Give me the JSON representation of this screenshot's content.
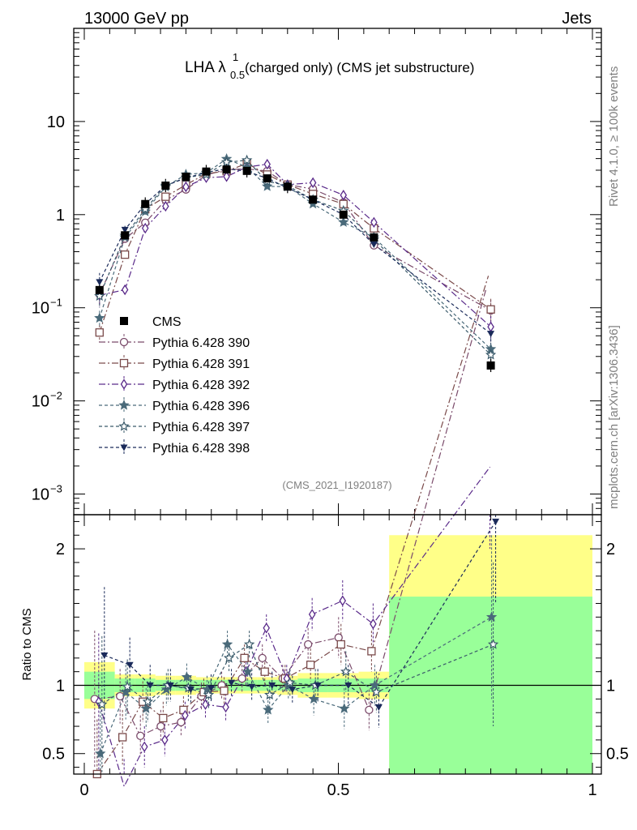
{
  "header": {
    "energy_label": "13000 GeV pp",
    "category_label": "Jets",
    "title_main": "LHA λ",
    "title_sup": "1",
    "title_sub": "0.5",
    "title_rest": "(charged only) (CMS jet substructure)",
    "analysis_id": "(CMS_2021_I1920187)",
    "side_rivet": "Rivet 4.1.0, ≥ 100k events",
    "side_mcplots": "mcplots.cern.ch [arXiv:1306.3436]"
  },
  "chart_data": {
    "type": "scatter",
    "x_axis": {
      "range": [
        -0.02,
        1.0
      ],
      "ticks": [
        0,
        0.5,
        1
      ],
      "tick_labels": [
        "0",
        "0.5",
        "1"
      ]
    },
    "main": {
      "y_scale": "log",
      "ylim": [
        0.0006,
        100
      ],
      "y_ticks": [
        10,
        1,
        0.1,
        0.01,
        0.001
      ],
      "y_tick_labels": [
        {
          "base": "10",
          "exp": ""
        },
        {
          "base": "1",
          "exp": ""
        },
        {
          "base": "10",
          "exp": "−1"
        },
        {
          "base": "10",
          "exp": "−2"
        },
        {
          "base": "10",
          "exp": "−3"
        }
      ]
    },
    "ratio": {
      "ylabel": "Ratio to CMS",
      "ylim": [
        0.35,
        2.25
      ],
      "y_ticks": [
        0.5,
        1,
        2
      ],
      "y_tick_labels": [
        "0.5",
        "1",
        "2"
      ]
    },
    "x_bins": [
      [
        0.0,
        0.06
      ],
      [
        0.06,
        0.1
      ],
      [
        0.1,
        0.14
      ],
      [
        0.14,
        0.18
      ],
      [
        0.18,
        0.22
      ],
      [
        0.22,
        0.26
      ],
      [
        0.26,
        0.3
      ],
      [
        0.3,
        0.34
      ],
      [
        0.34,
        0.38
      ],
      [
        0.38,
        0.42
      ],
      [
        0.42,
        0.48
      ],
      [
        0.48,
        0.54
      ],
      [
        0.54,
        0.6
      ],
      [
        0.6,
        1.0
      ]
    ],
    "x_points": [
      0.03,
      0.08,
      0.12,
      0.16,
      0.2,
      0.24,
      0.28,
      0.32,
      0.36,
      0.4,
      0.45,
      0.51,
      0.57,
      0.8
    ],
    "data": {
      "name": "CMS",
      "values": [
        0.155,
        0.6,
        1.3,
        2.05,
        2.55,
        2.9,
        3.05,
        2.95,
        2.45,
        2.0,
        1.45,
        1.0,
        0.57,
        0.024
      ],
      "band_green": [
        0.1,
        0.05,
        0.05,
        0.04,
        0.04,
        0.04,
        0.04,
        0.04,
        0.04,
        0.04,
        0.05,
        0.05,
        0.05,
        0.65
      ],
      "band_yellow": [
        0.17,
        0.08,
        0.08,
        0.07,
        0.07,
        0.06,
        0.06,
        0.06,
        0.06,
        0.07,
        0.09,
        0.09,
        0.1,
        1.1
      ]
    },
    "series": [
      {
        "name": "Pythia 6.428 390",
        "marker": "circle",
        "color": "#7a4a6a",
        "dash": "8,3,2,3",
        "ratio": [
          0.9,
          0.92,
          0.63,
          0.7,
          0.73,
          0.92,
          1.0,
          1.05,
          1.2,
          1.05,
          1.3,
          1.35,
          0.82,
          3.9
        ],
        "ratio_err": [
          0.5,
          0.2,
          0.15,
          0.12,
          0.1,
          0.1,
          0.1,
          0.1,
          0.1,
          0.1,
          0.12,
          0.15,
          0.15,
          0.6
        ]
      },
      {
        "name": "Pythia 6.428 391",
        "marker": "square",
        "color": "#7a4a4a",
        "dash": "8,3,2,3",
        "ratio": [
          0.35,
          0.62,
          0.88,
          0.76,
          0.82,
          0.95,
          0.96,
          1.2,
          1.1,
          1.05,
          1.15,
          1.3,
          1.25,
          4.0
        ],
        "ratio_err": [
          0.4,
          0.2,
          0.15,
          0.12,
          0.1,
          0.1,
          0.1,
          0.1,
          0.1,
          0.1,
          0.12,
          0.15,
          0.15,
          0.6
        ]
      },
      {
        "name": "Pythia 6.428 392",
        "marker": "diamond",
        "color": "#5a2a8a",
        "dash": "8,3,2,3",
        "ratio": [
          0.88,
          0.26,
          0.55,
          0.6,
          0.78,
          0.86,
          0.84,
          1.1,
          1.42,
          1.05,
          1.52,
          1.62,
          1.45,
          2.6
        ],
        "ratio_err": [
          0.5,
          0.2,
          0.15,
          0.12,
          0.1,
          0.1,
          0.1,
          0.1,
          0.1,
          0.1,
          0.12,
          0.15,
          0.15,
          0.6
        ]
      },
      {
        "name": "Pythia 6.428 396",
        "marker": "star-filled",
        "color": "#4a6a7a",
        "dash": "4,3",
        "ratio": [
          0.5,
          0.95,
          0.83,
          0.97,
          1.06,
          0.97,
          1.3,
          1.1,
          0.82,
          1.0,
          0.9,
          0.83,
          1.0,
          1.5
        ],
        "ratio_err": [
          0.4,
          0.2,
          0.15,
          0.12,
          0.1,
          0.1,
          0.1,
          0.1,
          0.1,
          0.1,
          0.12,
          0.15,
          0.15,
          0.6
        ]
      },
      {
        "name": "Pythia 6.428 397",
        "marker": "star-open",
        "color": "#3a5a6a",
        "dash": "4,3",
        "ratio": [
          0.86,
          0.99,
          0.88,
          1.0,
          0.98,
          0.93,
          1.2,
          1.3,
          0.93,
          1.02,
          1.0,
          1.1,
          0.95,
          1.3
        ],
        "ratio_err": [
          0.5,
          0.2,
          0.15,
          0.12,
          0.1,
          0.1,
          0.1,
          0.1,
          0.1,
          0.1,
          0.12,
          0.15,
          0.15,
          0.6
        ]
      },
      {
        "name": "Pythia 6.428 398",
        "marker": "triangle-down",
        "color": "#1a2a5a",
        "dash": "4,3",
        "ratio": [
          1.22,
          1.15,
          1.0,
          1.0,
          0.97,
          0.98,
          1.02,
          0.99,
          1.0,
          0.97,
          1.0,
          1.0,
          0.84,
          2.2
        ],
        "ratio_err": [
          0.5,
          0.2,
          0.15,
          0.12,
          0.1,
          0.1,
          0.1,
          0.1,
          0.1,
          0.1,
          0.12,
          0.15,
          0.15,
          0.6
        ]
      }
    ]
  }
}
